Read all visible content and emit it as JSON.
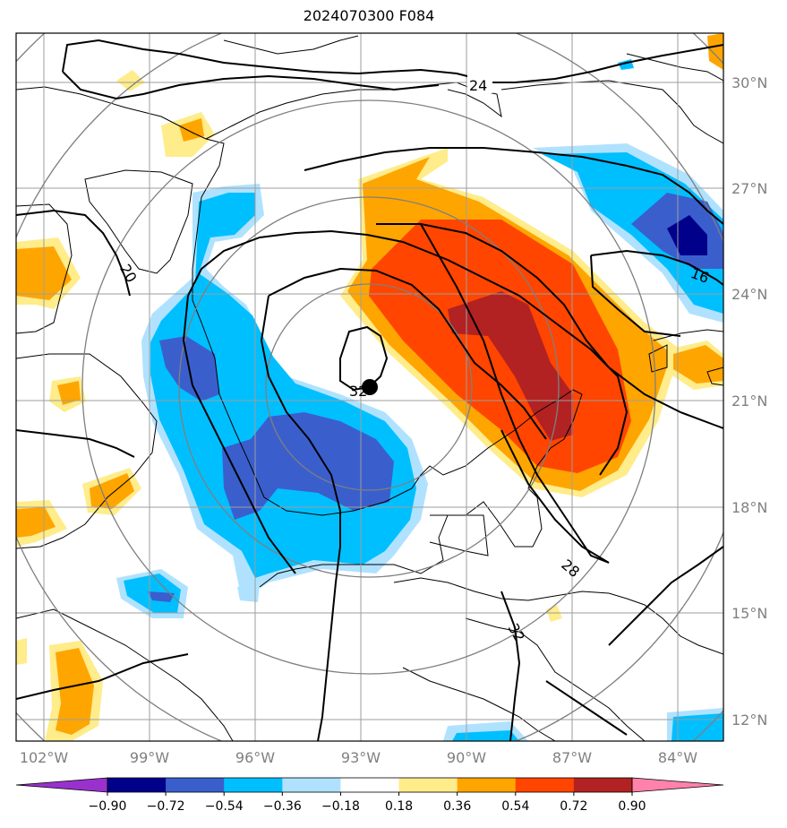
{
  "title": "2024070300 F084",
  "map": {
    "lon_range": [
      -103,
      -82.3
    ],
    "lat_range": [
      11.3,
      31.4
    ],
    "lon_labels": [
      "102°W",
      "99°W",
      "96°W",
      "93°W",
      "90°W",
      "87°W",
      "84°W"
    ],
    "lat_labels": [
      "30°N",
      "27°N",
      "24°N",
      "21°N",
      "18°N",
      "15°N",
      "12°N"
    ],
    "storm_center": {
      "lon": -92.8,
      "lat": 21.4
    },
    "contour_labels": [
      "24",
      "20",
      "16",
      "32",
      "28",
      "32"
    ],
    "range_rings": 5
  },
  "colorbar": {
    "ticks": [
      "−0.90",
      "−0.72",
      "−0.54",
      "−0.36",
      "−0.18",
      "0.18",
      "0.36",
      "0.54",
      "0.72",
      "0.90"
    ],
    "colors": [
      "#9932cc",
      "#00008b",
      "#3a5fcd",
      "#00bfff",
      "#b0e2ff",
      "#ffffff",
      "#ffec8b",
      "#ffa500",
      "#ff4500",
      "#b22222",
      "#ff82ab"
    ]
  }
}
